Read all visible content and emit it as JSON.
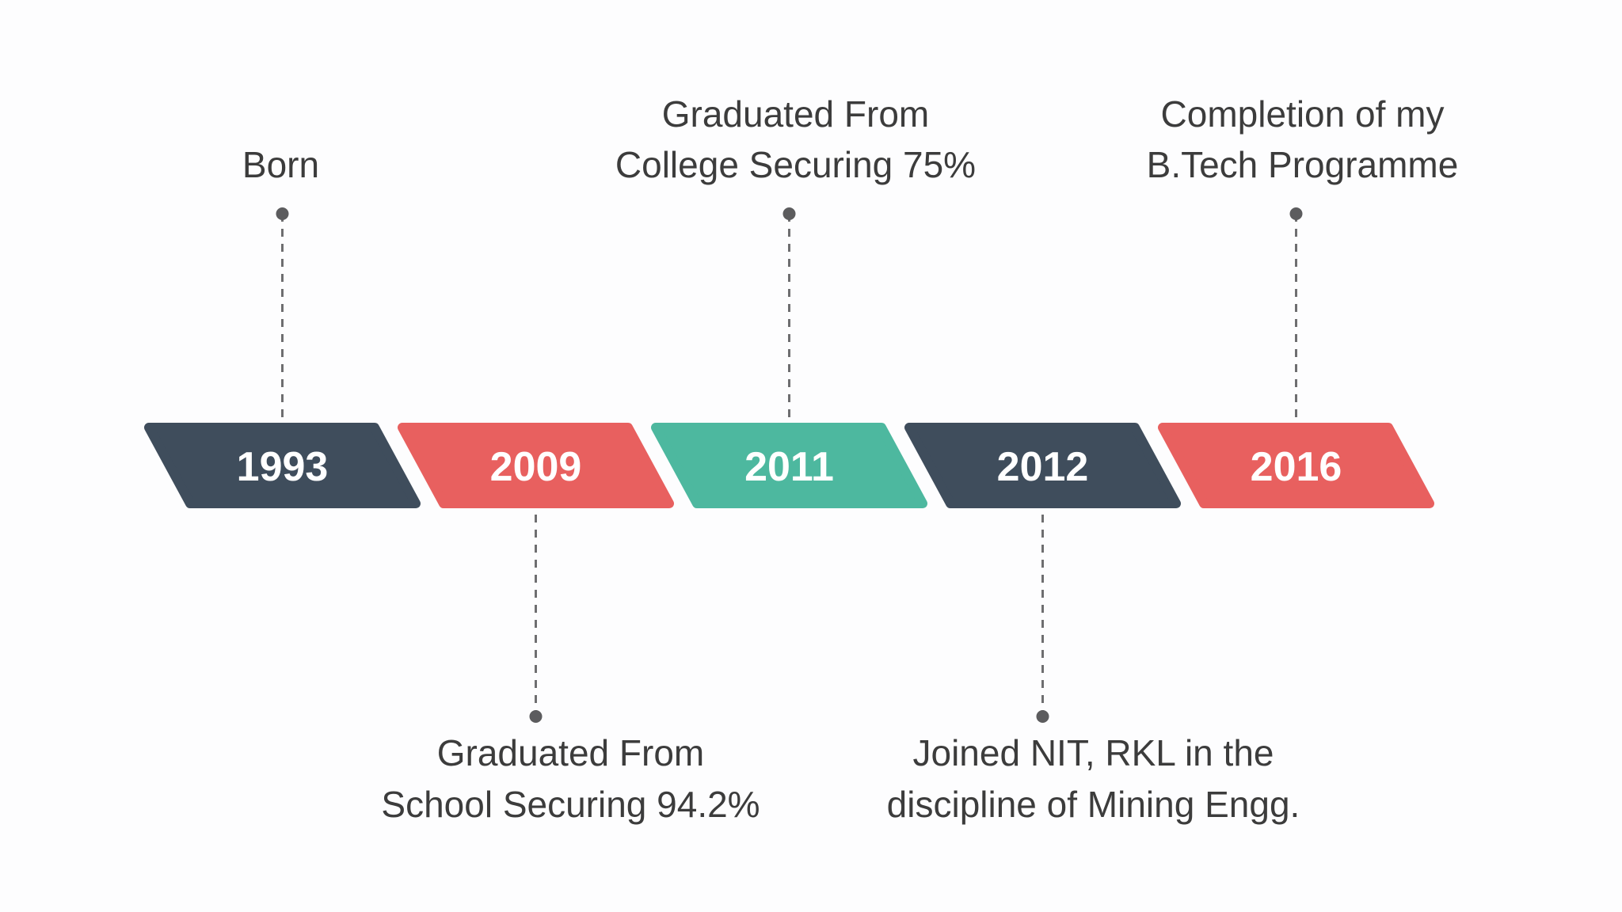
{
  "colors": {
    "slate": "#3f4d5c",
    "coral": "#e8605f",
    "teal": "#4db89f",
    "text": "#3c3c3c",
    "connector": "#6e6e70"
  },
  "milestones": [
    {
      "year": "1993",
      "color": "#3f4d5c",
      "label_position": "top",
      "label_lines": [
        "Born"
      ]
    },
    {
      "year": "2009",
      "color": "#e8605f",
      "label_position": "bottom",
      "label_lines": [
        "Graduated From",
        "School Securing 94.2%"
      ]
    },
    {
      "year": "2011",
      "color": "#4db89f",
      "label_position": "top",
      "label_lines": [
        "Graduated From",
        "College Securing 75%"
      ]
    },
    {
      "year": "2012",
      "color": "#3f4d5c",
      "label_position": "bottom",
      "label_lines": [
        "Joined NIT, RKL in the",
        "discipline of Mining Engg."
      ]
    },
    {
      "year": "2016",
      "color": "#e8605f",
      "label_position": "top",
      "label_lines": [
        "Completion of my",
        "B.Tech Programme"
      ]
    }
  ]
}
